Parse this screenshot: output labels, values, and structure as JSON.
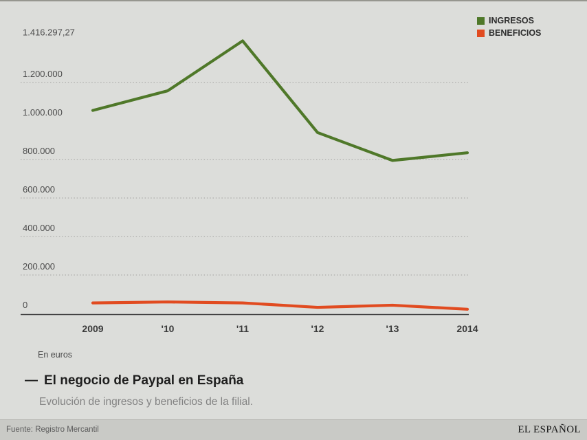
{
  "page": {
    "background": "#dcddda",
    "footer_background": "#c9cac6",
    "accent_green": "#4f7829",
    "accent_red": "#e14b20"
  },
  "legend": {
    "items": [
      {
        "label": "INGRESOS",
        "color": "#4f7829"
      },
      {
        "label": "BENEFICIOS",
        "color": "#e14b20"
      }
    ]
  },
  "chart_data": {
    "type": "line",
    "title": "El negocio de Paypal en España",
    "subtitle": "Evolución de ingresos y beneficios de la filial.",
    "unit_note": "En euros",
    "legend_position": "top-right",
    "grid": "dotted-horizontal",
    "x": [
      2009,
      2010,
      2011,
      2012,
      2013,
      2014
    ],
    "x_tick_labels": [
      "2009",
      "'10",
      "'11",
      "'12",
      "'13",
      "2014"
    ],
    "ylim": [
      0,
      1480000
    ],
    "y_axis_ticks": [
      {
        "label": "1.416.297,27",
        "value": 1416297.27,
        "gridline": false
      },
      {
        "label": "1.200.000",
        "value": 1200000,
        "gridline": true
      },
      {
        "label": "1.000.000",
        "value": 1000000,
        "gridline": false
      },
      {
        "label": "800.000",
        "value": 800000,
        "gridline": true
      },
      {
        "label": "600.000",
        "value": 600000,
        "gridline": true
      },
      {
        "label": "400.000",
        "value": 400000,
        "gridline": true
      },
      {
        "label": "200.000",
        "value": 200000,
        "gridline": true
      },
      {
        "label": "0",
        "value": 0,
        "gridline": false
      }
    ],
    "series": [
      {
        "name": "INGRESOS",
        "color": "#4f7829",
        "values": [
          1055000,
          1157000,
          1416297.27,
          940000,
          795000,
          835000
        ]
      },
      {
        "name": "BENEFICIOS",
        "color": "#e14b20",
        "values": [
          55000,
          60000,
          55000,
          32000,
          43000,
          22000
        ]
      }
    ]
  },
  "caption": {
    "dash": "—",
    "title": "El negocio de Paypal en España",
    "subtitle": "Evolución de ingresos y beneficios de la filial.",
    "unit_note": "En euros"
  },
  "footer": {
    "source": "Fuente: Registro Mercantil",
    "brand": "EL ESPAÑOL"
  }
}
